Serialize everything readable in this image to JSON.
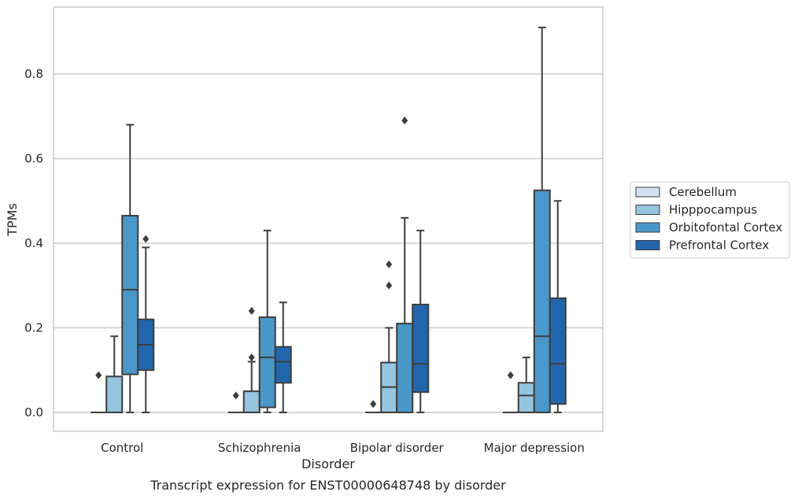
{
  "chart_data": {
    "type": "box",
    "xlabel": "Disorder",
    "ylabel": "TPMs",
    "caption": "Transcript expression for ENST00000648748 by disorder",
    "ylim": [
      -0.045,
      0.96
    ],
    "yticks": [
      "0.0",
      "0.2",
      "0.4",
      "0.6",
      "0.8"
    ],
    "ytick_values": [
      0.0,
      0.2,
      0.4,
      0.6,
      0.8
    ],
    "grid": "horizontal",
    "legend_position": "right",
    "categories": [
      "Control",
      "Schizophrenia",
      "Bipolar disorder",
      "Major depression"
    ],
    "series": [
      {
        "name": "Cerebellum",
        "color": "#d0e1f2",
        "boxes": [
          {
            "min": 0,
            "q1": 0,
            "median": 0,
            "q3": 0,
            "max": 0,
            "outliers": [
              0.088
            ]
          },
          {
            "min": 0,
            "q1": 0,
            "median": 0,
            "q3": 0,
            "max": 0,
            "outliers": [
              0.04
            ]
          },
          {
            "min": 0,
            "q1": 0,
            "median": 0,
            "q3": 0,
            "max": 0,
            "outliers": [
              0.02
            ]
          },
          {
            "min": 0,
            "q1": 0,
            "median": 0,
            "q3": 0,
            "max": 0,
            "outliers": [
              0.088
            ]
          }
        ]
      },
      {
        "name": "Hipppocampus",
        "color": "#94c4df",
        "boxes": [
          {
            "min": 0,
            "q1": 0,
            "median": 0,
            "q3": 0.085,
            "max": 0.18,
            "outliers": []
          },
          {
            "min": 0,
            "q1": 0,
            "median": 0,
            "q3": 0.05,
            "max": 0.12,
            "outliers": [
              0.13,
              0.24
            ]
          },
          {
            "min": 0,
            "q1": 0,
            "median": 0.06,
            "q3": 0.118,
            "max": 0.2,
            "outliers": [
              0.3,
              0.35
            ]
          },
          {
            "min": 0,
            "q1": 0,
            "median": 0.04,
            "q3": 0.07,
            "max": 0.13,
            "outliers": []
          }
        ]
      },
      {
        "name": "Orbitofontal Cortex",
        "color": "#4a98c9",
        "boxes": [
          {
            "min": 0,
            "q1": 0.09,
            "median": 0.29,
            "q3": 0.465,
            "max": 0.68,
            "outliers": []
          },
          {
            "min": 0,
            "q1": 0.012,
            "median": 0.13,
            "q3": 0.225,
            "max": 0.43,
            "outliers": []
          },
          {
            "min": 0,
            "q1": 0,
            "median": 0,
            "q3": 0.21,
            "max": 0.46,
            "outliers": [
              0.69
            ]
          },
          {
            "min": 0,
            "q1": 0,
            "median": 0.18,
            "q3": 0.525,
            "max": 0.91,
            "outliers": []
          }
        ]
      },
      {
        "name": "Prefrontal Cortex",
        "color": "#2166ac",
        "boxes": [
          {
            "min": 0,
            "q1": 0.1,
            "median": 0.16,
            "q3": 0.22,
            "max": 0.39,
            "outliers": [
              0.41
            ]
          },
          {
            "min": 0,
            "q1": 0.07,
            "median": 0.12,
            "q3": 0.155,
            "max": 0.26,
            "outliers": []
          },
          {
            "min": 0,
            "q1": 0.048,
            "median": 0.115,
            "q3": 0.255,
            "max": 0.43,
            "outliers": []
          },
          {
            "min": 0,
            "q1": 0.02,
            "median": 0.115,
            "q3": 0.27,
            "max": 0.5,
            "outliers": []
          }
        ]
      }
    ]
  }
}
